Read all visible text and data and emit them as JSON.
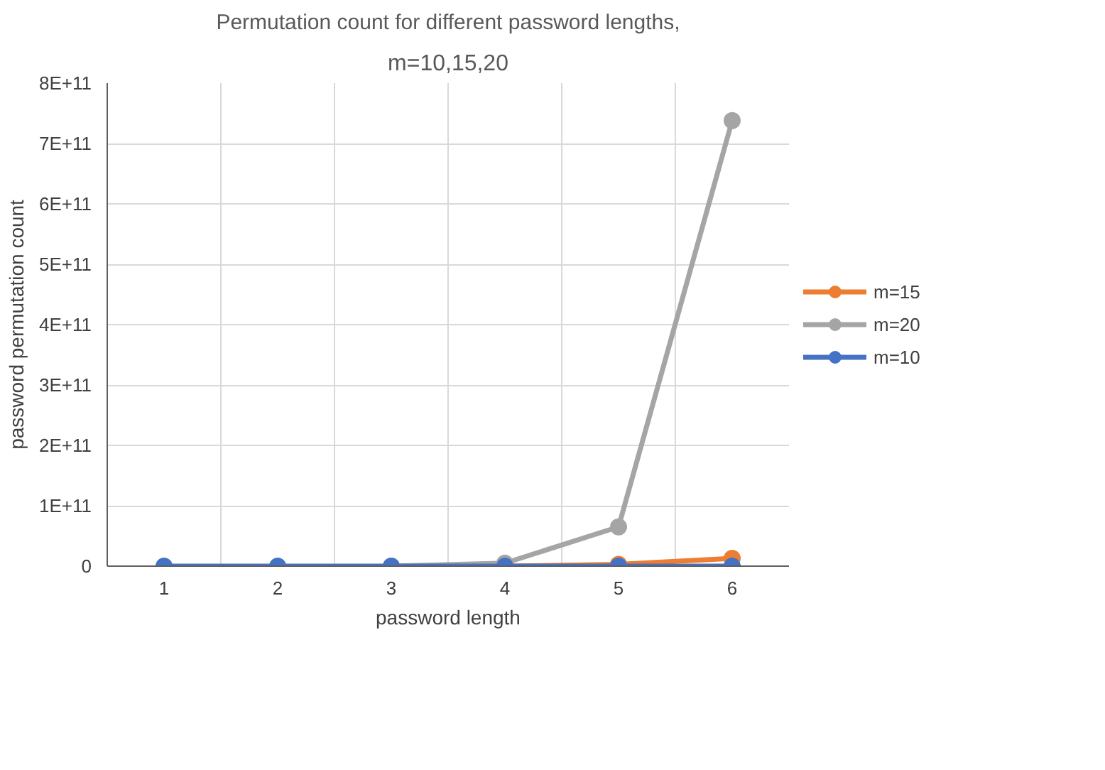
{
  "chart_data": {
    "type": "line",
    "title": "Permutation count for different password lengths,",
    "subtitle": "m=10,15,20",
    "xlabel": "password length",
    "ylabel": "password permutation count",
    "categories": [
      "1",
      "2",
      "3",
      "4",
      "5",
      "6"
    ],
    "series": [
      {
        "name": "m=15",
        "color": "#ed7d31",
        "values": [
          null,
          null,
          null,
          0,
          3000000000,
          13000000000
        ]
      },
      {
        "name": "m=20",
        "color": "#a5a5a5",
        "values": [
          null,
          null,
          0,
          5000000000,
          65000000000,
          738000000000
        ]
      },
      {
        "name": "m=10",
        "color": "#4472c4",
        "values": [
          0,
          0,
          0,
          0,
          0,
          0
        ]
      }
    ],
    "ylim": [
      0,
      800000000000
    ],
    "yticks": [
      {
        "value": 0,
        "label": "0"
      },
      {
        "value": 100000000000,
        "label": "1E+11"
      },
      {
        "value": 200000000000,
        "label": "2E+11"
      },
      {
        "value": 300000000000,
        "label": "3E+11"
      },
      {
        "value": 400000000000,
        "label": "4E+11"
      },
      {
        "value": 500000000000,
        "label": "5E+11"
      },
      {
        "value": 600000000000,
        "label": "6E+11"
      },
      {
        "value": 700000000000,
        "label": "7E+11"
      },
      {
        "value": 800000000000,
        "label": "8E+11"
      }
    ],
    "grid": true,
    "legend": "right",
    "marker": "circle",
    "line_style": "solid"
  }
}
